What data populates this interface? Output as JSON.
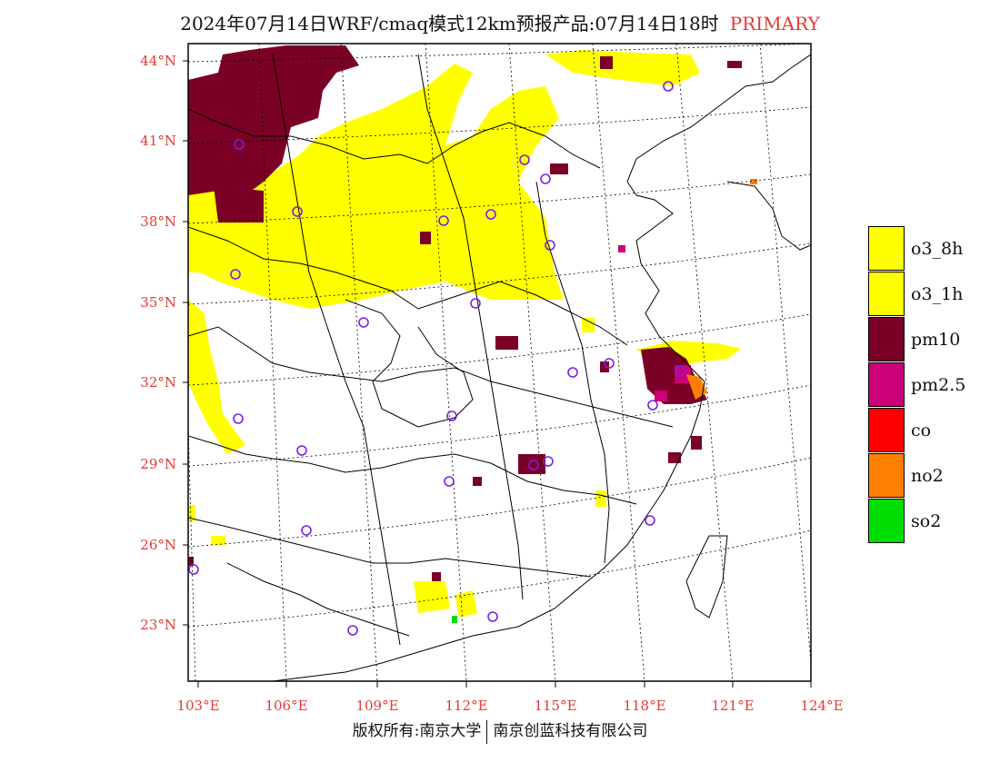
{
  "title": {
    "text": "2024年07月14日WRF/cmaq模式12km预报产品:07月14日18时",
    "tag": "PRIMARY"
  },
  "axes": {
    "lat_labels": [
      "44°N",
      "41°N",
      "38°N",
      "35°N",
      "32°N",
      "29°N",
      "26°N",
      "23°N"
    ],
    "lon_labels": [
      "103°E",
      "106°E",
      "109°E",
      "112°E",
      "115°E",
      "118°E",
      "121°E",
      "124°E"
    ],
    "label_color": "#e53935"
  },
  "legend": [
    {
      "label": "o3_8h",
      "color": "#ffff00"
    },
    {
      "label": "o3_1h",
      "color": "#ffff00"
    },
    {
      "label": "pm10",
      "color": "#7b0026"
    },
    {
      "label": "pm2.5",
      "color": "#cc0077"
    },
    {
      "label": "co",
      "color": "#ff0000"
    },
    {
      "label": "no2",
      "color": "#ff7f00"
    },
    {
      "label": "so2",
      "color": "#00dd00"
    }
  ],
  "copyright": {
    "left": "版权所有:南京大学",
    "right": "南京创蓝科技有限公司"
  }
}
